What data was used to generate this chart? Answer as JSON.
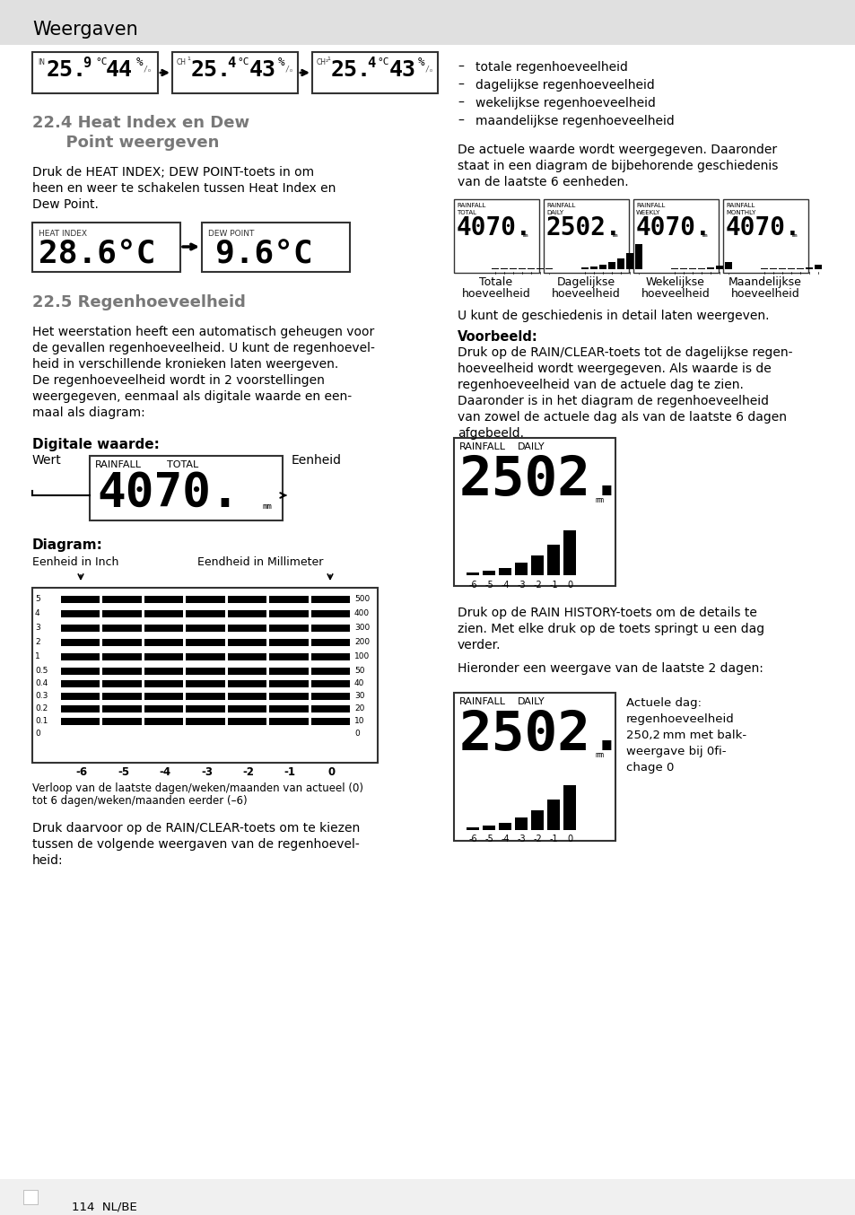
{
  "header_text": "Weergaven",
  "header_bg": "#e8e8e8",
  "page_bg": "#ffffff",
  "bullets": [
    "totale regenhoeveelheid",
    "dagelijkse regenhoeveelheid",
    "wekelijkse regenhoeveelheid",
    "maandelijkse regenhoeveelheid"
  ],
  "sec24_title_line1": "22.4 Heat Index en Dew",
  "sec24_title_line2": "      Point weergeven",
  "sec24_body": [
    "Druk de HEAT INDEX; DEW POINT-toets in om",
    "heen en weer te schakelen tussen Heat Index en",
    "Dew Point."
  ],
  "heat_index_label": "HEAT INDEX",
  "heat_index_val": "28.6°C",
  "dew_point_label": "DEW POINT",
  "dew_point_val": "9.6°C",
  "right_para": [
    "De actuele waarde wordt weergegeven. Daaronder",
    "staat in een diagram de bijbehorende geschiedenis",
    "van de laatste 6 eenheden."
  ],
  "display_modes": [
    "TOTAL",
    "DAILY",
    "WEEKLY",
    "MONTHLY"
  ],
  "display_vals": [
    "4070.",
    "2502.",
    "4070.",
    "4070."
  ],
  "display_labels": [
    [
      "Totale",
      "hoeveelheid"
    ],
    [
      "Dagelijkse",
      "hoeveelheid"
    ],
    [
      "Wekelijkse",
      "hoeveelheid"
    ],
    [
      "Maandelijkse",
      "hoeveelheid"
    ]
  ],
  "history_text": "U kunt de geschiedenis in detail laten weergeven.",
  "sec25_title": "22.5 Regenhoeveelheid",
  "sec25_body": [
    "Het weerstation heeft een automatisch geheugen voor",
    "de gevallen regenhoeveelheid. U kunt de regenhoevel-",
    "heid in verschillende kronieken laten weergeven.",
    "De regenhoeveelheid wordt in 2 voorstellingen",
    "weergegeven, eenmaal als digitale waarde en een-",
    "maal als diagram:"
  ],
  "dig_waarde_title": "Digitale waarde:",
  "wert_label": "Wert",
  "eenheid_label": "Eenheid",
  "rainfall_val": "4070.",
  "rainfall_label": "RAINFALL",
  "rainfall_mode": "TOTAL",
  "rainfall_unit": "mm",
  "voorbeeld_title": "Voorbeeld:",
  "voorbeeld_body": [
    "Druk op de RAIN/CLEAR-toets tot de dagelijkse regen-",
    "hoeveelheid wordt weergegeven. Als waarde is de",
    "regenhoeveelheid van de actuele dag te zien.",
    "Daaronder is in het diagram de regenhoeveelheid",
    "van zowel de actuele dag als van de laatste 6 dagen",
    "afgebeeld."
  ],
  "diagram_title": "Diagram:",
  "inch_label": "Eenheid in Inch",
  "mm_label": "Eendheid in Millimeter",
  "diag_y_left": [
    "5",
    "4",
    "3",
    "2",
    "1",
    "0.5",
    "0.4",
    "0.3",
    "0.2",
    "0.1",
    "0"
  ],
  "diag_y_right": [
    "500",
    "400",
    "300",
    "200",
    "100",
    "50",
    "40",
    "30",
    "20",
    "10",
    "0"
  ],
  "diag_x": [
    "-6",
    "-5",
    "-4",
    "-3",
    "-2",
    "-1",
    "0"
  ],
  "verloop_caption": [
    "Verloop van de laatste dagen/weken/maanden van actueel (0)",
    "tot 6 dagen/weken/maanden eerder (–6)"
  ],
  "druk_text": [
    "Druk daarvoor op de RAIN/CLEAR-toets om te kiezen",
    "tussen de volgende weergaven van de regenhoevel-",
    "heid:"
  ],
  "rain_hist_text": [
    "Druk op de RAIN HISTORY-toets om de details te",
    "zien. Met elke druk op de toets springt u een dag",
    "verder."
  ],
  "last2_text": "Hieronder een weergave van de laatste 2 dagen:",
  "bottom_caption": [
    "Actuele dag:",
    "regenhoeveelheid",
    "250,2 mm met balk-",
    "weergave bij 0fi-",
    "chage 0"
  ],
  "footer_text": "114  NL/BE",
  "lcd_bg": "#ffffff",
  "lcd_fg": "#000000",
  "gray_title": "#787878"
}
